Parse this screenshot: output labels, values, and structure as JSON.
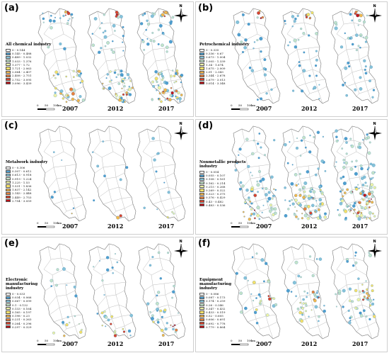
{
  "years": [
    "2007",
    "2012",
    "2017"
  ],
  "north_label": "N",
  "scale_labels": [
    "0",
    "50",
    "100",
    "km"
  ],
  "panels": [
    {
      "id": "a",
      "letter": "(a)",
      "title": "All chemical industry",
      "legend": [
        "0 - 0.144",
        "0.145 - 0.488",
        "0.489 - 1.032",
        "1.033 - 1.376",
        "1.377 - 1.72",
        "1.721 - 2.063",
        "2.064 - 2.407",
        "2.408 - 2.751",
        "2.752 - 3.095",
        "3.096 - 3.439"
      ]
    },
    {
      "id": "b",
      "letter": "(b)",
      "title": "Petrochemical industry",
      "legend": [
        "0 - 0.335",
        "0.336 - 0.67",
        "0.673 - 1.004",
        "1.005 - 1.339",
        "1.34 - 1.674",
        "1.675 - 2.009",
        "2.01 - 2.343",
        "2.344 - 2.678",
        "2.679 - 3.013",
        "3.014 - 3.348"
      ]
    },
    {
      "id": "c",
      "letter": "(c)",
      "title": "Metalwork industry",
      "legend": [
        "0 - 0.306",
        "0.307 - 0.612",
        "0.613 - 0.918",
        "0.919 - 1.224",
        "1.225 - 1.53",
        "1.531 - 1.836",
        "1.837 - 2.142",
        "2.143 - 2.448",
        "2.449 - 2.753",
        "2.754 - 3.059"
      ]
    },
    {
      "id": "d",
      "letter": "(d)",
      "title": "Nonmetallic products industry",
      "legend": [
        "0 - 0.054",
        "0.055 - 0.107",
        "0.108 - 0.161",
        "0.162 - 0.214",
        "0.215 - 0.268",
        "0.269 - 0.322",
        "0.323 - 0.375",
        "0.376 - 0.429",
        "0.43 - 0.482",
        "0.483 - 0.536"
      ]
    },
    {
      "id": "e",
      "letter": "(e)",
      "title": "Electronic manufacturing industry",
      "legend": [
        "0 - 0.033",
        "0.034 - 0.066",
        "0.067 - 0.099",
        "0.1 - 0.132",
        "0.133 - 0.164",
        "0.165 - 0.197",
        "0.198 - 0.23",
        "0.231 - 0.263",
        "0.264 - 0.296",
        "0.297 - 0.329"
      ]
    },
    {
      "id": "f",
      "letter": "(f)",
      "title": "Equipment manufacturing industry",
      "legend": [
        "0 - 0.086",
        "0.087 - 0.173",
        "0.174 - 0.259",
        "0.26 - 0.346",
        "0.347 - 0.432",
        "0.433 - 0.519",
        "0.52 - 0.605",
        "0.606 - 0.691",
        "0.692 - 0.778",
        "0.779 - 0.864"
      ]
    }
  ],
  "legend_colors": [
    "#ffffff",
    "#4f9fcf",
    "#86c3d9",
    "#c4e3c9",
    "#eef2a6",
    "#f5e06a",
    "#f2b64d",
    "#e8803b",
    "#d9442c",
    "#c0141a"
  ],
  "hotspot_profile": {
    "a": "north-south",
    "b": "north",
    "c": "sparse",
    "d": "dense",
    "e": "sparse-south",
    "f": "middle"
  }
}
